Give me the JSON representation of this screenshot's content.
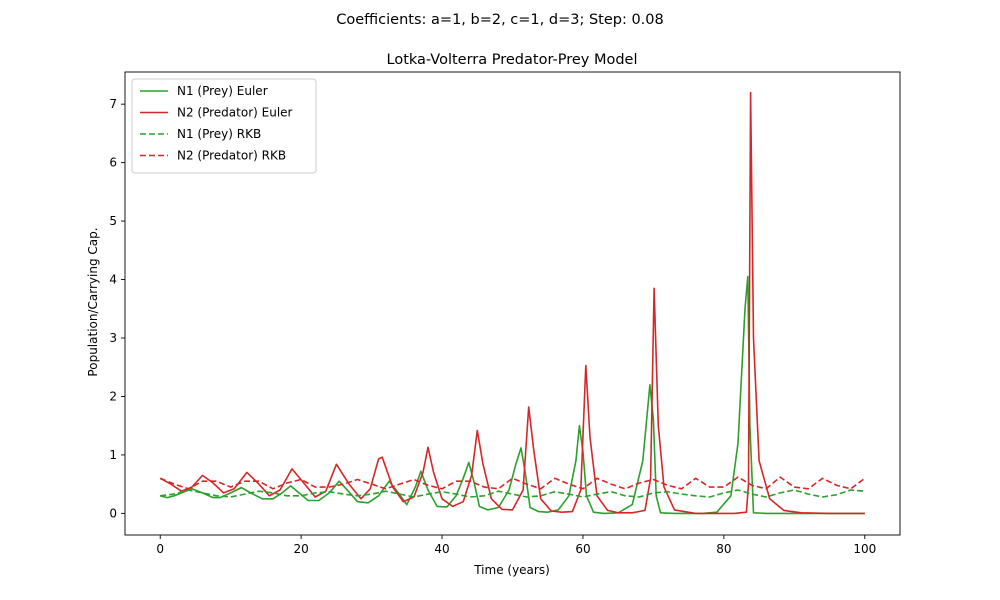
{
  "suptitle": "Coefficients: a=1, b=2, c=1, d=3; Step: 0.08",
  "chart_data": {
    "type": "line",
    "title": "Lotka-Volterra Predator-Prey Model",
    "xlabel": "Time (years)",
    "ylabel": "Population/Carrying Cap.",
    "xlim": [
      -5,
      105
    ],
    "ylim": [
      -0.37,
      7.55
    ],
    "xticks": [
      0,
      20,
      40,
      60,
      80,
      100
    ],
    "yticks": [
      0,
      1,
      2,
      3,
      4,
      5,
      6,
      7
    ],
    "grid": false,
    "legend": "top-left",
    "series": [
      {
        "name": "N1 (Prey) Euler",
        "color": "#2ca02c",
        "dash": "solid",
        "x": [
          0,
          1,
          2,
          3,
          4.5,
          6,
          7.5,
          8.5,
          10,
          11.5,
          13,
          14.5,
          16,
          17.3,
          18.5,
          19.7,
          21,
          22.5,
          24,
          25.4,
          26.7,
          28,
          29.5,
          31,
          32.5,
          33.8,
          35,
          36.2,
          37,
          38,
          39.3,
          40.7,
          42,
          43,
          43.8,
          44.5,
          45.3,
          46.5,
          48,
          49.5,
          50.5,
          51.2,
          51.8,
          52.5,
          53.7,
          55,
          56.5,
          58,
          59,
          59.5,
          60,
          60.5,
          61.5,
          63,
          65,
          67,
          68.5,
          69.5,
          70.0,
          70.4,
          71,
          73,
          75,
          77,
          79,
          81,
          82,
          83,
          83.4,
          83.7,
          84.2,
          86,
          90,
          95,
          100
        ],
        "values": [
          0.3,
          0.27,
          0.3,
          0.35,
          0.42,
          0.35,
          0.27,
          0.27,
          0.35,
          0.44,
          0.34,
          0.25,
          0.25,
          0.35,
          0.47,
          0.35,
          0.22,
          0.22,
          0.35,
          0.55,
          0.38,
          0.2,
          0.18,
          0.3,
          0.55,
          0.35,
          0.15,
          0.45,
          0.72,
          0.4,
          0.12,
          0.11,
          0.3,
          0.6,
          0.87,
          0.55,
          0.12,
          0.06,
          0.1,
          0.4,
          0.85,
          1.12,
          0.7,
          0.1,
          0.03,
          0.02,
          0.06,
          0.3,
          0.9,
          1.5,
          1.05,
          0.3,
          0.02,
          0.0,
          0.01,
          0.15,
          0.9,
          2.2,
          1.6,
          0.3,
          0.01,
          0.0,
          0.0,
          0.0,
          0.02,
          0.3,
          1.2,
          3.5,
          4.05,
          1.5,
          0.01,
          0.0,
          0.0,
          0.0,
          0.0
        ]
      },
      {
        "name": "N2 (Predator) Euler",
        "color": "#d62728",
        "dash": "solid",
        "x": [
          0,
          1.5,
          3,
          4.5,
          6,
          7.5,
          9,
          10.5,
          12.3,
          14,
          15.5,
          17,
          18.7,
          20.5,
          22,
          23.5,
          25,
          26.8,
          28.5,
          29.8,
          31,
          31.5,
          33,
          34.5,
          36,
          37.3,
          38,
          38.8,
          40,
          41.5,
          43,
          44.2,
          45,
          45.8,
          47,
          48.5,
          50,
          51.5,
          52.3,
          53,
          54,
          55.5,
          57,
          58.5,
          59.7,
          60.4,
          61,
          62,
          63.5,
          65,
          67,
          68.8,
          69.6,
          70.1,
          70.7,
          71.5,
          73,
          76,
          79,
          81.5,
          83.2,
          83.5,
          83.8,
          84.2,
          85,
          86.5,
          88.5,
          91,
          95,
          100
        ],
        "values": [
          0.6,
          0.5,
          0.38,
          0.45,
          0.65,
          0.52,
          0.35,
          0.42,
          0.7,
          0.5,
          0.3,
          0.4,
          0.76,
          0.5,
          0.28,
          0.38,
          0.84,
          0.5,
          0.25,
          0.42,
          0.93,
          0.96,
          0.45,
          0.2,
          0.28,
          0.7,
          1.13,
          0.7,
          0.25,
          0.12,
          0.2,
          0.65,
          1.42,
          0.85,
          0.25,
          0.07,
          0.06,
          0.4,
          1.82,
          1.1,
          0.25,
          0.04,
          0.02,
          0.03,
          0.4,
          2.53,
          1.3,
          0.3,
          0.05,
          0.01,
          0.01,
          0.05,
          0.6,
          3.85,
          1.5,
          0.45,
          0.06,
          0.0,
          0.0,
          0.0,
          0.02,
          0.5,
          7.2,
          3.0,
          0.9,
          0.25,
          0.05,
          0.01,
          0.0,
          0.0
        ]
      },
      {
        "name": "N1 (Prey) RKB",
        "color": "#2ca02c",
        "dash": "dashed",
        "x": [
          0,
          2,
          4,
          6,
          8,
          10,
          12,
          14,
          16,
          18,
          20,
          22,
          24,
          26,
          28,
          30,
          32,
          34,
          36,
          38,
          40,
          42,
          44,
          46,
          48,
          50,
          52,
          54,
          56,
          58,
          60,
          62,
          64,
          66,
          68,
          70,
          72,
          74,
          76,
          78,
          80,
          82,
          84,
          86,
          88,
          90,
          92,
          94,
          96,
          98,
          100
        ],
        "values": [
          0.3,
          0.33,
          0.4,
          0.35,
          0.3,
          0.28,
          0.33,
          0.38,
          0.35,
          0.3,
          0.3,
          0.35,
          0.37,
          0.33,
          0.3,
          0.33,
          0.38,
          0.33,
          0.28,
          0.33,
          0.37,
          0.33,
          0.28,
          0.3,
          0.38,
          0.33,
          0.28,
          0.3,
          0.37,
          0.33,
          0.28,
          0.33,
          0.37,
          0.3,
          0.28,
          0.35,
          0.37,
          0.33,
          0.3,
          0.28,
          0.35,
          0.4,
          0.33,
          0.28,
          0.35,
          0.4,
          0.33,
          0.28,
          0.32,
          0.4,
          0.38
        ]
      },
      {
        "name": "N2 (Predator) RKB",
        "color": "#d62728",
        "dash": "dashed",
        "x": [
          0,
          2,
          4,
          6,
          8,
          10,
          12,
          14,
          16,
          18,
          20,
          22,
          24,
          26,
          28,
          30,
          32,
          34,
          36,
          38,
          40,
          42,
          44,
          46,
          48,
          50,
          52,
          54,
          56,
          58,
          60,
          62,
          64,
          66,
          68,
          70,
          72,
          74,
          76,
          78,
          80,
          82,
          84,
          86,
          88,
          90,
          92,
          94,
          96,
          98,
          100
        ],
        "values": [
          0.6,
          0.5,
          0.42,
          0.55,
          0.55,
          0.45,
          0.55,
          0.55,
          0.42,
          0.52,
          0.58,
          0.45,
          0.45,
          0.5,
          0.58,
          0.5,
          0.42,
          0.5,
          0.58,
          0.48,
          0.42,
          0.55,
          0.55,
          0.45,
          0.42,
          0.6,
          0.5,
          0.42,
          0.6,
          0.5,
          0.42,
          0.6,
          0.5,
          0.42,
          0.52,
          0.58,
          0.48,
          0.42,
          0.6,
          0.45,
          0.45,
          0.62,
          0.48,
          0.42,
          0.62,
          0.45,
          0.42,
          0.6,
          0.48,
          0.42,
          0.6
        ]
      }
    ]
  }
}
